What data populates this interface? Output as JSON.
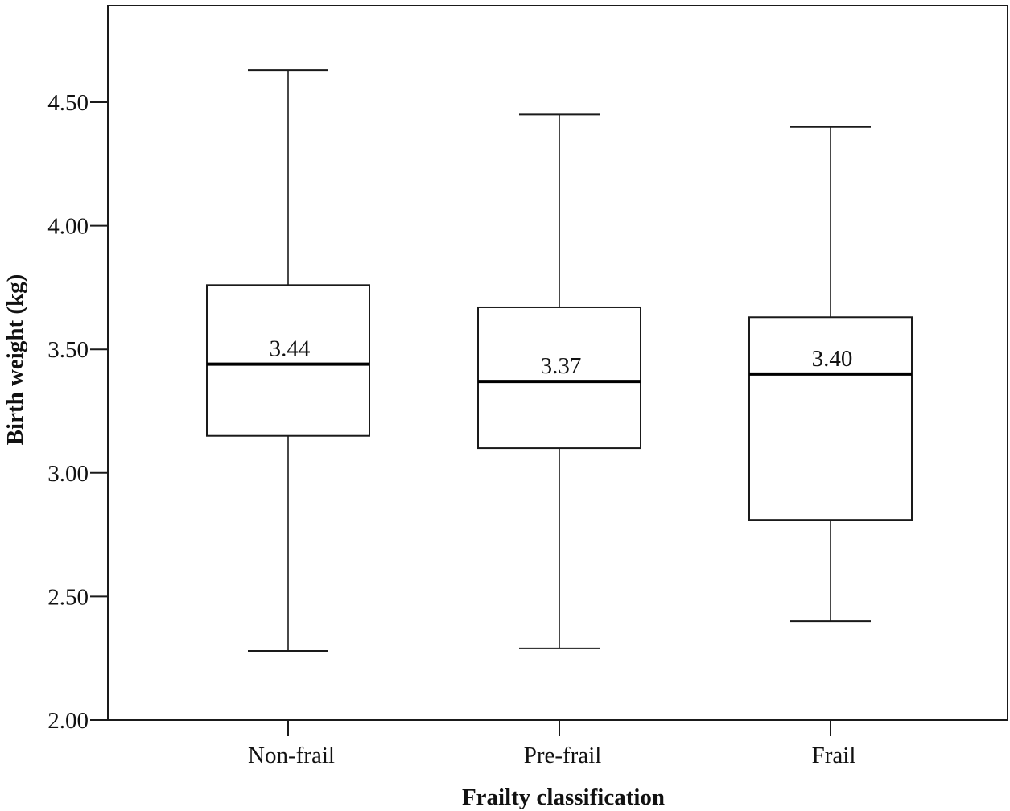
{
  "chart_data": {
    "type": "box",
    "xlabel": "Frailty classification",
    "ylabel": "Birth weight (kg)",
    "ylim": [
      2.0,
      4.75
    ],
    "yticks": [
      2.0,
      2.5,
      3.0,
      3.5,
      4.0,
      4.5
    ],
    "ytick_labels": [
      "2.00",
      "2.50",
      "3.00",
      "3.50",
      "4.00",
      "4.50"
    ],
    "grid": false,
    "groups": [
      {
        "category": "Non-frail",
        "min": 2.28,
        "q1": 3.15,
        "median": 3.44,
        "q3": 3.76,
        "max": 4.63,
        "median_label": "3.44"
      },
      {
        "category": "Pre-frail",
        "min": 2.29,
        "q1": 3.1,
        "median": 3.37,
        "q3": 3.67,
        "max": 4.45,
        "median_label": "3.37"
      },
      {
        "category": "Frail",
        "min": 2.4,
        "q1": 2.81,
        "median": 3.4,
        "q3": 3.63,
        "max": 4.4,
        "median_label": "3.40"
      }
    ],
    "colors": {
      "line": "#1a1a1a",
      "box_fill": "#ffffff",
      "median": "#000000"
    }
  }
}
